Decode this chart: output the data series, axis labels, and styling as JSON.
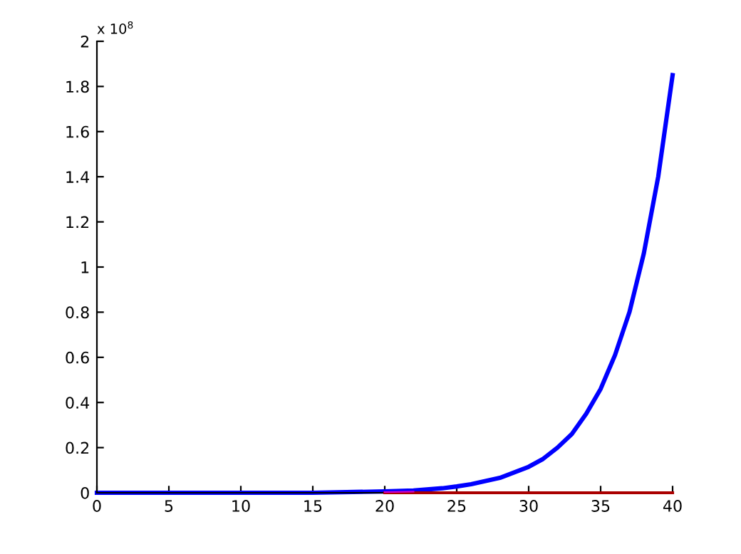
{
  "chart_data": {
    "type": "line",
    "annotations": [
      "x 10$^{8}$"
    ],
    "series": [
      {
        "color": "#0000ff",
        "x": [
          0,
          5,
          10,
          15,
          20,
          22,
          24,
          25,
          26,
          28,
          30,
          31,
          32,
          33,
          34,
          35,
          36,
          37,
          38,
          39,
          40
        ],
        "values": [
          0,
          0,
          0,
          0,
          0.006,
          0.01,
          0.02,
          0.028,
          0.038,
          0.066,
          0.115,
          0.15,
          0.2,
          0.26,
          0.35,
          0.46,
          0.61,
          0.8,
          1.06,
          1.4,
          1.85
        ]
      },
      {
        "color": "#aa0000",
        "x": [
          20,
          40
        ],
        "values": [
          0,
          0
        ]
      },
      {
        "color": "#cc00cc",
        "x": [
          20,
          22
        ],
        "values": [
          0.003,
          0.005
        ]
      }
    ],
    "xlim": [
      0,
      40
    ],
    "xticks": [
      0,
      5,
      10,
      15,
      20,
      25,
      30,
      35,
      40
    ],
    "ylim": [
      0,
      2
    ],
    "yticks": [
      0,
      0.2,
      0.4,
      0.6,
      0.8,
      1,
      1.2,
      1.4,
      1.6,
      1.8,
      2
    ],
    "grid": false,
    "legend": false
  }
}
